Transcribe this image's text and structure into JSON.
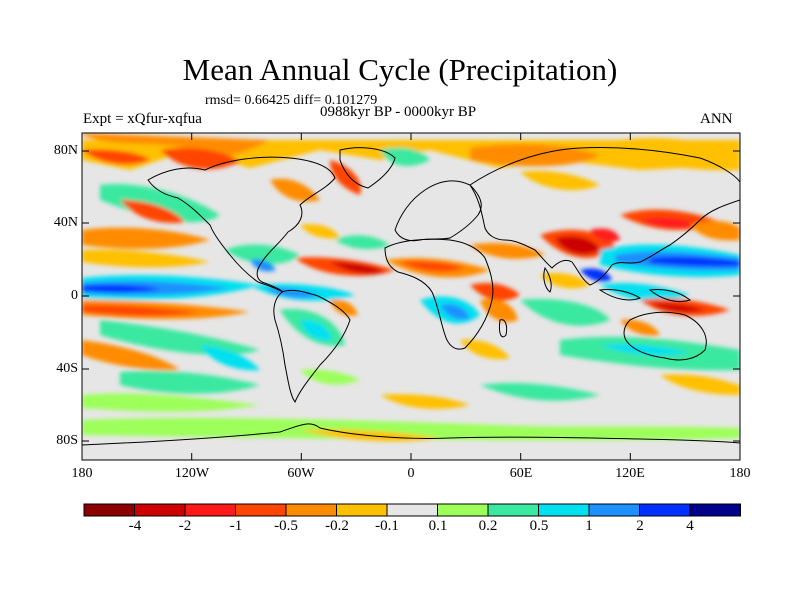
{
  "title": "Mean Annual Cycle (Precipitation)",
  "stats": "rmsd= 0.66425 diff= 0.101279",
  "experiment": "Expt = xQfur-xqfua",
  "period": "0988kyr BP - 0000kyr BP",
  "season": "ANN",
  "lat_ticks": [
    "80N",
    "40N",
    "0",
    "40S",
    "80S"
  ],
  "lon_ticks": [
    "180",
    "120W",
    "60W",
    "0",
    "60E",
    "120E",
    "180"
  ],
  "colorbar": {
    "labels": [
      "-4",
      "-2",
      "-1",
      "-0.5",
      "-0.2",
      "-0.1",
      "0.1",
      "0.2",
      "0.5",
      "1",
      "2",
      "4"
    ],
    "colors": [
      "#8b0000",
      "#cc0000",
      "#ff1a1a",
      "#ff4500",
      "#ff8c00",
      "#ffc000",
      "#e6e6e6",
      "#9cff5a",
      "#3ae8a0",
      "#00e0f0",
      "#1e90ff",
      "#0030ff",
      "#00008b"
    ]
  }
}
